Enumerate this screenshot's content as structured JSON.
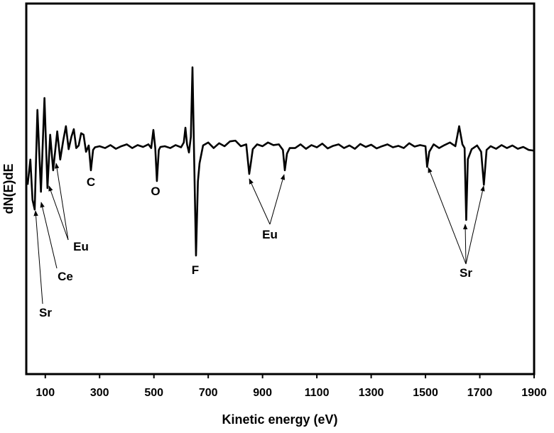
{
  "chart_data": {
    "type": "line",
    "xlabel": "Kinetic energy (eV)",
    "ylabel": "dN(E)dE",
    "xlim": [
      30,
      1900
    ],
    "ylim": [
      0,
      100
    ],
    "xticks": [
      100,
      300,
      500,
      700,
      900,
      1100,
      1300,
      1500,
      1700,
      1900
    ],
    "color": "#000000",
    "x": [
      35,
      45,
      53,
      61,
      71,
      84,
      97,
      108,
      118,
      129,
      144,
      155,
      166,
      176,
      186,
      196,
      205,
      214,
      223,
      232,
      241,
      250,
      260,
      268,
      276,
      283,
      300,
      320,
      340,
      360,
      380,
      400,
      420,
      440,
      460,
      480,
      490,
      498,
      505,
      511,
      518,
      524,
      540,
      560,
      580,
      600,
      610,
      616,
      622,
      629,
      636,
      642,
      649,
      655,
      662,
      668,
      681,
      700,
      720,
      740,
      760,
      780,
      800,
      820,
      840,
      851,
      858,
      864,
      880,
      900,
      920,
      940,
      960,
      975,
      982,
      990,
      1000,
      1020,
      1040,
      1060,
      1080,
      1100,
      1120,
      1140,
      1160,
      1180,
      1200,
      1220,
      1240,
      1260,
      1280,
      1300,
      1320,
      1340,
      1360,
      1380,
      1400,
      1420,
      1440,
      1460,
      1480,
      1500,
      1506,
      1514,
      1530,
      1550,
      1570,
      1590,
      1610,
      1624,
      1636,
      1644,
      1650,
      1656,
      1670,
      1690,
      1705,
      1715,
      1725,
      1740,
      1760,
      1780,
      1800,
      1820,
      1840,
      1860,
      1880,
      1900
    ],
    "values": [
      51.1,
      57.9,
      47,
      44.4,
      71.3,
      49.2,
      74.5,
      50.2,
      64.6,
      55,
      65.5,
      57.9,
      63,
      66.9,
      60.7,
      64,
      66.1,
      61,
      61.7,
      65,
      64.6,
      60,
      61.7,
      55,
      60.5,
      61.2,
      61.5,
      61,
      61.8,
      60.8,
      61.5,
      62,
      61,
      61.8,
      61.3,
      62,
      61,
      65.9,
      61,
      52.1,
      60.5,
      61.3,
      61.5,
      61,
      61.8,
      61.2,
      62.5,
      66.5,
      62,
      59.8,
      64,
      82.8,
      55,
      32,
      52,
      56.9,
      61.7,
      62.5,
      61,
      62.3,
      61.5,
      62.8,
      63,
      61.5,
      62,
      54,
      57.5,
      60.7,
      62,
      61.5,
      62.5,
      61.8,
      62,
      60.5,
      55,
      59.5,
      61,
      61,
      62,
      60.8,
      61.8,
      61.2,
      62.2,
      60.9,
      61.6,
      62,
      61,
      61.7,
      60.8,
      62.1,
      61.3,
      61.9,
      60.9,
      61.5,
      62,
      61.2,
      61.6,
      61,
      62.3,
      61.4,
      61.8,
      61.5,
      55.9,
      60,
      62,
      61,
      61.8,
      62.5,
      61.5,
      66.9,
      62,
      61,
      41.6,
      58,
      60.7,
      61.7,
      60,
      51.1,
      60.5,
      61.5,
      60.8,
      61.8,
      61,
      61.7,
      60.8,
      61.3,
      60.5,
      60.3
    ],
    "annotations": [
      {
        "text": "C"
      },
      {
        "text": "O"
      },
      {
        "text": "F"
      },
      {
        "text": "Eu"
      },
      {
        "text": "Ce"
      },
      {
        "text": "Sr"
      },
      {
        "text": "Eu"
      },
      {
        "text": "Sr"
      }
    ]
  }
}
